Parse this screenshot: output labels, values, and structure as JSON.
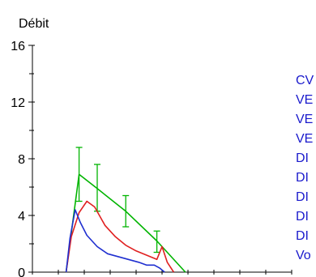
{
  "chart_data": {
    "type": "line",
    "title": "",
    "xlabel": "",
    "ylabel": "Débit",
    "ylim": [
      0,
      16
    ],
    "xlim": [
      0,
      10
    ],
    "yticks": [
      0,
      4,
      8,
      12,
      16
    ],
    "grid": false,
    "legend": {
      "placement": "right",
      "entries": [
        "CV",
        "VE",
        "VE",
        "VE",
        "DI",
        "DI",
        "DI",
        "DI",
        "DI",
        "Vo"
      ]
    },
    "series": [
      {
        "color": "#00b400",
        "x": [
          1.3,
          1.8,
          2.5,
          3.6,
          4.8,
          5.9
        ],
        "y": [
          0.0,
          6.9,
          5.9,
          4.3,
          2.2,
          0.0
        ],
        "error_bars": [
          {
            "x": 1.8,
            "low": 5.0,
            "high": 8.8
          },
          {
            "x": 2.5,
            "low": 4.3,
            "high": 7.6
          },
          {
            "x": 3.6,
            "low": 3.2,
            "high": 5.4
          },
          {
            "x": 4.8,
            "low": 1.4,
            "high": 2.9
          }
        ]
      },
      {
        "color": "#e02020",
        "x": [
          1.3,
          1.5,
          1.8,
          2.1,
          2.4,
          2.8,
          3.2,
          3.6,
          4.0,
          4.4,
          4.8,
          5.0,
          5.2,
          5.45
        ],
        "y": [
          0.0,
          2.5,
          4.2,
          5.0,
          4.6,
          3.3,
          2.5,
          1.9,
          1.5,
          1.2,
          0.9,
          1.8,
          0.7,
          0.0
        ]
      },
      {
        "color": "#1f2fd0",
        "x": [
          1.3,
          1.45,
          1.65,
          1.85,
          2.1,
          2.5,
          2.9,
          3.3,
          3.7,
          4.1,
          4.4,
          4.7,
          4.9,
          5.1
        ],
        "y": [
          0.0,
          2.4,
          4.4,
          3.5,
          2.6,
          1.8,
          1.3,
          1.1,
          0.9,
          0.7,
          0.5,
          0.5,
          0.3,
          0.0
        ]
      }
    ]
  }
}
